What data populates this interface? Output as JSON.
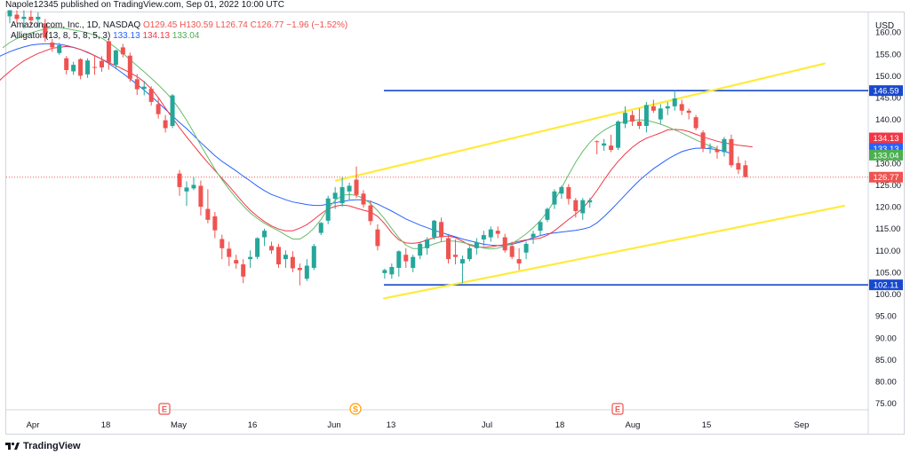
{
  "header": {
    "publish_line": "Napole12345 published on TradingView.com, Sep 01, 2022 10:00 UTC"
  },
  "legend": {
    "symbol": "Amazon.com, Inc., 1D, NASDAQ",
    "open": "O129.45",
    "high": "H130.59",
    "low": "L126.74",
    "close": "C126.77",
    "change": "−1.96 (−1.52%)",
    "alligator_label": "Alligator (13, 8, 5, 8, 5, 3)",
    "jaw": "133.13",
    "teeth": "134.13",
    "lips": "133.04"
  },
  "footer": {
    "brand": "TradingView"
  },
  "colors": {
    "up": "#26a69a",
    "down": "#ef5350",
    "jaw": "#2962ff",
    "teeth": "#f23645",
    "lips": "#66bb6a",
    "channel": "#ffeb3b",
    "hline": "#1848cc"
  },
  "chart_data": {
    "type": "candlestick",
    "currency": "USD",
    "x_labels": [
      "Apr",
      "18",
      "May",
      "16",
      "Jun",
      "13",
      "Jul",
      "18",
      "Aug",
      "15",
      "Sep"
    ],
    "y_ticks": [
      75,
      80,
      85,
      90,
      95,
      100,
      105,
      110,
      115,
      120,
      125,
      130,
      135,
      140,
      145,
      150,
      155,
      160
    ],
    "y_tick_labels": [
      "75.00",
      "80.00",
      "85.00",
      "90.00",
      "95.00",
      "100.00",
      "105.00",
      "110.00",
      "115.00",
      "120.00",
      "125.00",
      "130.00",
      "135.00",
      "140.00",
      "145.00",
      "150.00",
      "155.00",
      "160.00"
    ],
    "ylim": [
      73.5,
      164.5
    ],
    "horizontal_lines": [
      {
        "value": 146.59,
        "label": "146.59"
      },
      {
        "value": 102.11,
        "label": "102.11"
      }
    ],
    "price_tags": [
      {
        "value": 134.13,
        "label": "134.13",
        "color": "#f23645"
      },
      {
        "value": 133.13,
        "label": "133.13",
        "color": "#2962ff"
      },
      {
        "value": 133.04,
        "label": "133.04",
        "color": "#4caf50"
      },
      {
        "value": 126.77,
        "label": "126.77",
        "color": "#ef5350"
      }
    ],
    "last_price": 126.77,
    "event_markers": [
      {
        "label": "E",
        "type": "earnings"
      },
      {
        "label": "S",
        "type": "split"
      },
      {
        "label": "E",
        "type": "earnings"
      }
    ],
    "channel_lines": [
      {
        "name": "upper",
        "start_value": 126.0,
        "end_value": 152.8
      },
      {
        "name": "lower",
        "start_value": 99.0,
        "end_value": 120.2
      }
    ],
    "candles": [
      [
        163.6,
        165.0,
        162.0,
        165.0
      ],
      [
        164.0,
        165.0,
        162.0,
        163.0
      ],
      [
        163.0,
        165.0,
        160.8,
        163.5
      ],
      [
        163.5,
        165.0,
        161.5,
        162.7
      ],
      [
        162.9,
        164.5,
        161.0,
        163.5
      ],
      [
        162.0,
        163.0,
        157.8,
        158.7
      ],
      [
        157.6,
        158.4,
        155.5,
        156.5
      ],
      [
        155.2,
        157.5,
        154.8,
        157.0
      ],
      [
        154.0,
        154.5,
        150.3,
        151.3
      ],
      [
        151.0,
        153.2,
        150.2,
        152.5
      ],
      [
        153.8,
        154.0,
        149.2,
        150.0
      ],
      [
        150.3,
        154.0,
        149.5,
        153.5
      ],
      [
        152.0,
        154.6,
        150.2,
        151.8
      ],
      [
        153.4,
        154.5,
        150.9,
        151.9
      ],
      [
        157.9,
        158.5,
        151.4,
        153.0
      ],
      [
        152.5,
        156.0,
        151.5,
        155.8
      ],
      [
        156.5,
        157.3,
        154.2,
        154.9
      ],
      [
        154.6,
        155.3,
        148.6,
        149.3
      ],
      [
        149.2,
        150.4,
        145.6,
        146.9
      ],
      [
        147.0,
        148.8,
        145.5,
        147.5
      ],
      [
        147.0,
        147.6,
        143.2,
        144.0
      ],
      [
        143.5,
        145.0,
        140.2,
        141.2
      ],
      [
        139.8,
        141.0,
        137.0,
        138.0
      ],
      [
        138.5,
        145.8,
        138.0,
        145.5
      ],
      [
        127.6,
        128.4,
        122.5,
        124.5
      ],
      [
        123.5,
        125.8,
        120.2,
        124.4
      ],
      [
        124.2,
        126.8,
        123.8,
        125.0
      ],
      [
        124.8,
        126.0,
        118.0,
        120.0
      ],
      [
        119.5,
        124.0,
        116.2,
        117.0
      ],
      [
        117.8,
        118.8,
        112.8,
        114.6
      ],
      [
        112.6,
        113.6,
        108.0,
        110.5
      ],
      [
        110.4,
        112.0,
        106.4,
        108.5
      ],
      [
        107.8,
        109.0,
        105.8,
        107.0
      ],
      [
        106.8,
        108.0,
        102.5,
        104.0
      ],
      [
        108.0,
        110.0,
        106.0,
        108.5
      ],
      [
        108.5,
        113.0,
        108.0,
        112.8
      ],
      [
        113.0,
        115.0,
        111.0,
        114.5
      ],
      [
        111.0,
        112.0,
        109.2,
        110.0
      ],
      [
        110.8,
        111.5,
        106.0,
        106.8
      ],
      [
        108.0,
        110.0,
        106.0,
        109.0
      ],
      [
        108.5,
        109.8,
        105.0,
        105.9
      ],
      [
        106.0,
        107.0,
        102.0,
        105.5
      ],
      [
        103.5,
        108.0,
        103.0,
        106.5
      ],
      [
        106.0,
        111.5,
        105.5,
        111.0
      ],
      [
        114.0,
        116.5,
        113.5,
        116.3
      ],
      [
        116.8,
        122.5,
        116.0,
        121.9
      ],
      [
        121.8,
        124.5,
        119.5,
        123.2
      ],
      [
        120.8,
        126.8,
        120.0,
        124.5
      ],
      [
        123.5,
        125.5,
        121.6,
        124.8
      ],
      [
        126.2,
        129.2,
        122.0,
        122.7
      ],
      [
        123.0,
        123.8,
        119.8,
        120.5
      ],
      [
        120.3,
        121.5,
        115.8,
        116.7
      ],
      [
        114.8,
        116.0,
        110.0,
        111.0
      ],
      [
        104.8,
        105.8,
        103.5,
        105.5
      ],
      [
        104.5,
        107.0,
        103.5,
        106.2
      ],
      [
        106.0,
        110.0,
        104.0,
        109.8
      ],
      [
        109.0,
        110.5,
        106.0,
        107.5
      ],
      [
        106.0,
        109.0,
        105.0,
        108.5
      ],
      [
        108.8,
        112.0,
        108.0,
        111.5
      ],
      [
        110.5,
        113.0,
        109.0,
        112.5
      ],
      [
        113.0,
        117.0,
        112.5,
        116.8
      ],
      [
        116.5,
        117.5,
        112.0,
        113.0
      ],
      [
        112.8,
        113.5,
        107.0,
        108.0
      ],
      [
        109.0,
        112.5,
        106.8,
        108.5
      ],
      [
        107.0,
        108.8,
        102.5,
        108.0
      ],
      [
        108.0,
        111.0,
        107.5,
        110.5
      ],
      [
        110.5,
        112.8,
        109.0,
        111.8
      ],
      [
        112.5,
        114.5,
        111.0,
        113.5
      ],
      [
        113.0,
        115.5,
        112.0,
        114.8
      ],
      [
        114.5,
        115.5,
        112.8,
        113.8
      ],
      [
        113.0,
        113.8,
        109.5,
        110.0
      ],
      [
        111.0,
        112.0,
        108.0,
        108.5
      ],
      [
        108.0,
        110.5,
        105.5,
        107.0
      ],
      [
        109.5,
        112.0,
        108.0,
        111.5
      ],
      [
        113.0,
        114.5,
        111.5,
        113.8
      ],
      [
        114.5,
        117.0,
        113.5,
        116.5
      ],
      [
        117.0,
        119.8,
        116.5,
        119.5
      ],
      [
        120.5,
        124.0,
        119.5,
        123.5
      ],
      [
        123.0,
        124.8,
        121.8,
        124.5
      ],
      [
        124.5,
        125.2,
        120.5,
        121.8
      ],
      [
        121.5,
        122.0,
        117.5,
        119.0
      ],
      [
        118.5,
        122.0,
        117.0,
        121.5
      ],
      [
        121.0,
        122.0,
        119.8,
        121.5
      ],
      [
        135.0,
        135.2,
        132.0,
        134.8
      ],
      [
        134.0,
        135.5,
        132.8,
        134.5
      ],
      [
        134.0,
        136.5,
        132.5,
        133.0
      ],
      [
        133.5,
        139.8,
        133.0,
        139.5
      ],
      [
        139.0,
        143.0,
        138.0,
        141.5
      ],
      [
        141.0,
        142.0,
        138.5,
        139.5
      ],
      [
        139.5,
        142.5,
        137.8,
        138.5
      ],
      [
        138.5,
        144.0,
        137.0,
        143.3
      ],
      [
        143.0,
        144.5,
        141.5,
        142.0
      ],
      [
        140.0,
        143.5,
        139.0,
        142.5
      ],
      [
        142.5,
        144.0,
        141.0,
        143.0
      ],
      [
        143.0,
        146.6,
        142.0,
        144.8
      ],
      [
        143.5,
        144.5,
        141.0,
        142.0
      ],
      [
        142.0,
        142.5,
        140.0,
        141.5
      ],
      [
        140.5,
        141.0,
        137.5,
        138.0
      ],
      [
        137.0,
        137.5,
        132.5,
        133.3
      ],
      [
        133.5,
        134.5,
        132.2,
        133.7
      ],
      [
        133.0,
        134.0,
        131.0,
        132.5
      ],
      [
        132.5,
        136.0,
        131.5,
        135.5
      ],
      [
        135.5,
        136.5,
        129.0,
        129.5
      ],
      [
        130.0,
        131.5,
        127.5,
        128.5
      ],
      [
        129.5,
        130.6,
        126.7,
        126.8
      ]
    ],
    "series": [
      {
        "name": "Jaw",
        "values": [
          149.5,
          150.8,
          152.0,
          153.1,
          154.0,
          154.8,
          155.5,
          156.1,
          156.6,
          157.0,
          157.2,
          157.3,
          157.3,
          157.2,
          156.9,
          156.5,
          156.0,
          155.3,
          154.6,
          153.8,
          152.8,
          151.7,
          150.5,
          149.3,
          148.0,
          146.7,
          145.3,
          143.8,
          142.3,
          140.8,
          139.3,
          137.9,
          136.3,
          134.7,
          133.2,
          131.7,
          130.4,
          129.3,
          128.2,
          127.0,
          125.9,
          124.7,
          123.7,
          122.8,
          122.2,
          121.6,
          121.1,
          120.8,
          120.5,
          120.3,
          120.3,
          120.6,
          120.9,
          121.2,
          121.5,
          121.6,
          121.6,
          121.2,
          120.6,
          119.8,
          119.0,
          118.1,
          117.2,
          116.5,
          115.8,
          115.2,
          114.6,
          114.1,
          113.6,
          113.1,
          112.6,
          112.2,
          111.8,
          111.4,
          111.2,
          111.1,
          111.1,
          111.4,
          111.8,
          112.3,
          112.9,
          113.4,
          113.8,
          114.0,
          114.2,
          114.4,
          114.6,
          114.9,
          115.3,
          116.3,
          117.7,
          119.3,
          121.0,
          122.7,
          124.4,
          126.0,
          127.4,
          128.7,
          129.8,
          130.9,
          131.8,
          132.6,
          133.1,
          133.4,
          133.4,
          133.3,
          133.1,
          132.7,
          132.2
        ]
      },
      {
        "name": "Teeth",
        "values": [
          146.5,
          148.0,
          149.6,
          151.0,
          152.3,
          153.4,
          154.3,
          155.1,
          155.7,
          156.3,
          156.5,
          156.7,
          156.5,
          156.0,
          155.4,
          154.6,
          153.8,
          153.0,
          152.3,
          151.5,
          150.7,
          149.8,
          148.6,
          147.0,
          145.0,
          142.6,
          140.3,
          138.1,
          136.0,
          134.0,
          132.0,
          130.1,
          128.3,
          126.5,
          124.7,
          122.8,
          120.9,
          119.2,
          117.8,
          116.6,
          115.6,
          114.9,
          114.5,
          114.5,
          115.1,
          115.9,
          117.1,
          118.4,
          119.5,
          120.1,
          120.4,
          120.2,
          119.7,
          119.2,
          118.8,
          117.8,
          116.1,
          114.0,
          112.4,
          111.7,
          111.6,
          111.8,
          112.4,
          112.9,
          113.2,
          113.3,
          112.9,
          112.1,
          111.2,
          110.8,
          110.7,
          110.8,
          111.1,
          111.3,
          111.7,
          112.1,
          112.4,
          112.6,
          112.8,
          113.5,
          114.5,
          115.8,
          117.1,
          118.3,
          119.7,
          121.5,
          123.7,
          126.1,
          128.4,
          130.4,
          132.1,
          133.6,
          134.8,
          135.7,
          136.3,
          136.9,
          137.6,
          137.7,
          137.6,
          137.2,
          136.6,
          136.0,
          135.5,
          135.0,
          134.6,
          134.4,
          134.1,
          133.9,
          133.7
        ]
      },
      {
        "name": "Lips",
        "values": [
          156.4,
          157.6,
          158.5,
          159.2,
          159.8,
          160.3,
          160.7,
          161.0,
          161.0,
          160.8,
          160.5,
          160.2,
          159.8,
          159.3,
          158.6,
          157.6,
          156.4,
          155.1,
          153.7,
          152.3,
          150.9,
          149.4,
          147.9,
          146.3,
          144.5,
          142.3,
          139.8,
          137.0,
          134.1,
          131.3,
          128.6,
          126.2,
          124.0,
          122.0,
          120.2,
          118.6,
          117.3,
          116.2,
          115.3,
          114.5,
          113.5,
          112.6,
          112.6,
          113.6,
          115.1,
          117.1,
          119.6,
          121.5,
          122.6,
          122.8,
          122.6,
          121.9,
          120.7,
          119.1,
          117.2,
          115.0,
          112.9,
          111.2,
          110.4,
          110.4,
          110.9,
          111.5,
          112.0,
          112.2,
          112.1,
          111.8,
          111.4,
          111.0,
          110.5,
          110.3,
          110.5,
          111.0,
          111.6,
          112.6,
          113.8,
          115.2,
          116.8,
          118.9,
          121.4,
          124.3,
          127.3,
          130.2,
          132.7,
          134.7,
          136.3,
          137.5,
          138.4,
          139.1,
          139.5,
          139.8,
          139.9,
          139.8,
          139.4,
          138.9,
          138.3,
          137.6,
          136.9,
          136.1,
          135.3,
          134.6,
          133.9,
          133.3
        ]
      }
    ]
  }
}
